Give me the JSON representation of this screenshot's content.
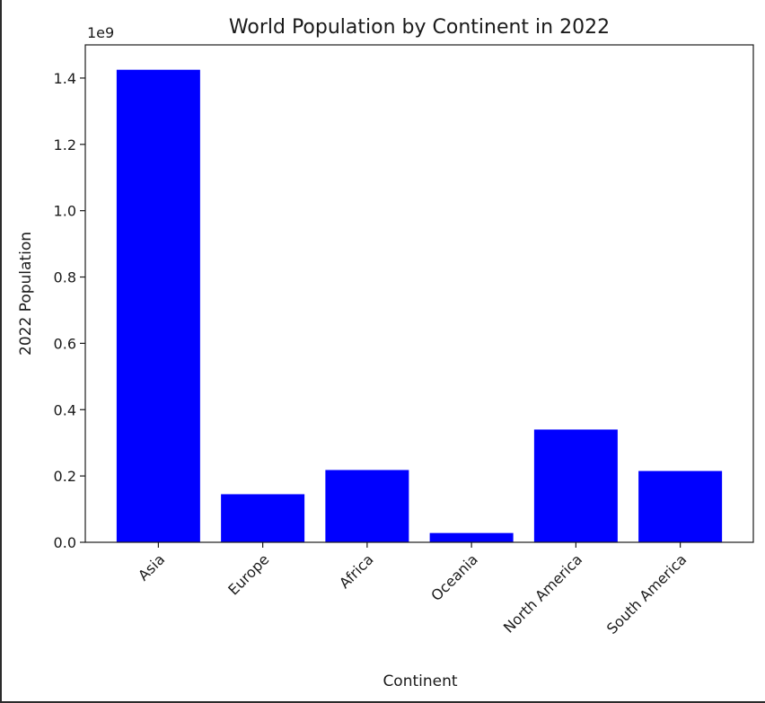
{
  "chart_data": {
    "type": "bar",
    "title": "World Population by Continent in 2022",
    "xlabel": "Continent",
    "ylabel": "2022 Population",
    "y_offset_label": "1e9",
    "y_scale_factor": 1000000000,
    "categories": [
      "Asia",
      "Europe",
      "Africa",
      "Oceania",
      "North America",
      "South America"
    ],
    "values": [
      1425000000,
      145000000,
      218000000,
      28000000,
      340000000,
      215000000
    ],
    "ylim": [
      0,
      1.5
    ],
    "y_ticks": [
      0.0,
      0.2,
      0.4,
      0.6,
      0.8,
      1.0,
      1.2,
      1.4
    ],
    "y_tick_labels": [
      "0.0",
      "0.2",
      "0.4",
      "0.6",
      "0.8",
      "1.0",
      "1.2",
      "1.4"
    ],
    "bar_color": "#0000ff",
    "grid": false,
    "legend": "none"
  }
}
